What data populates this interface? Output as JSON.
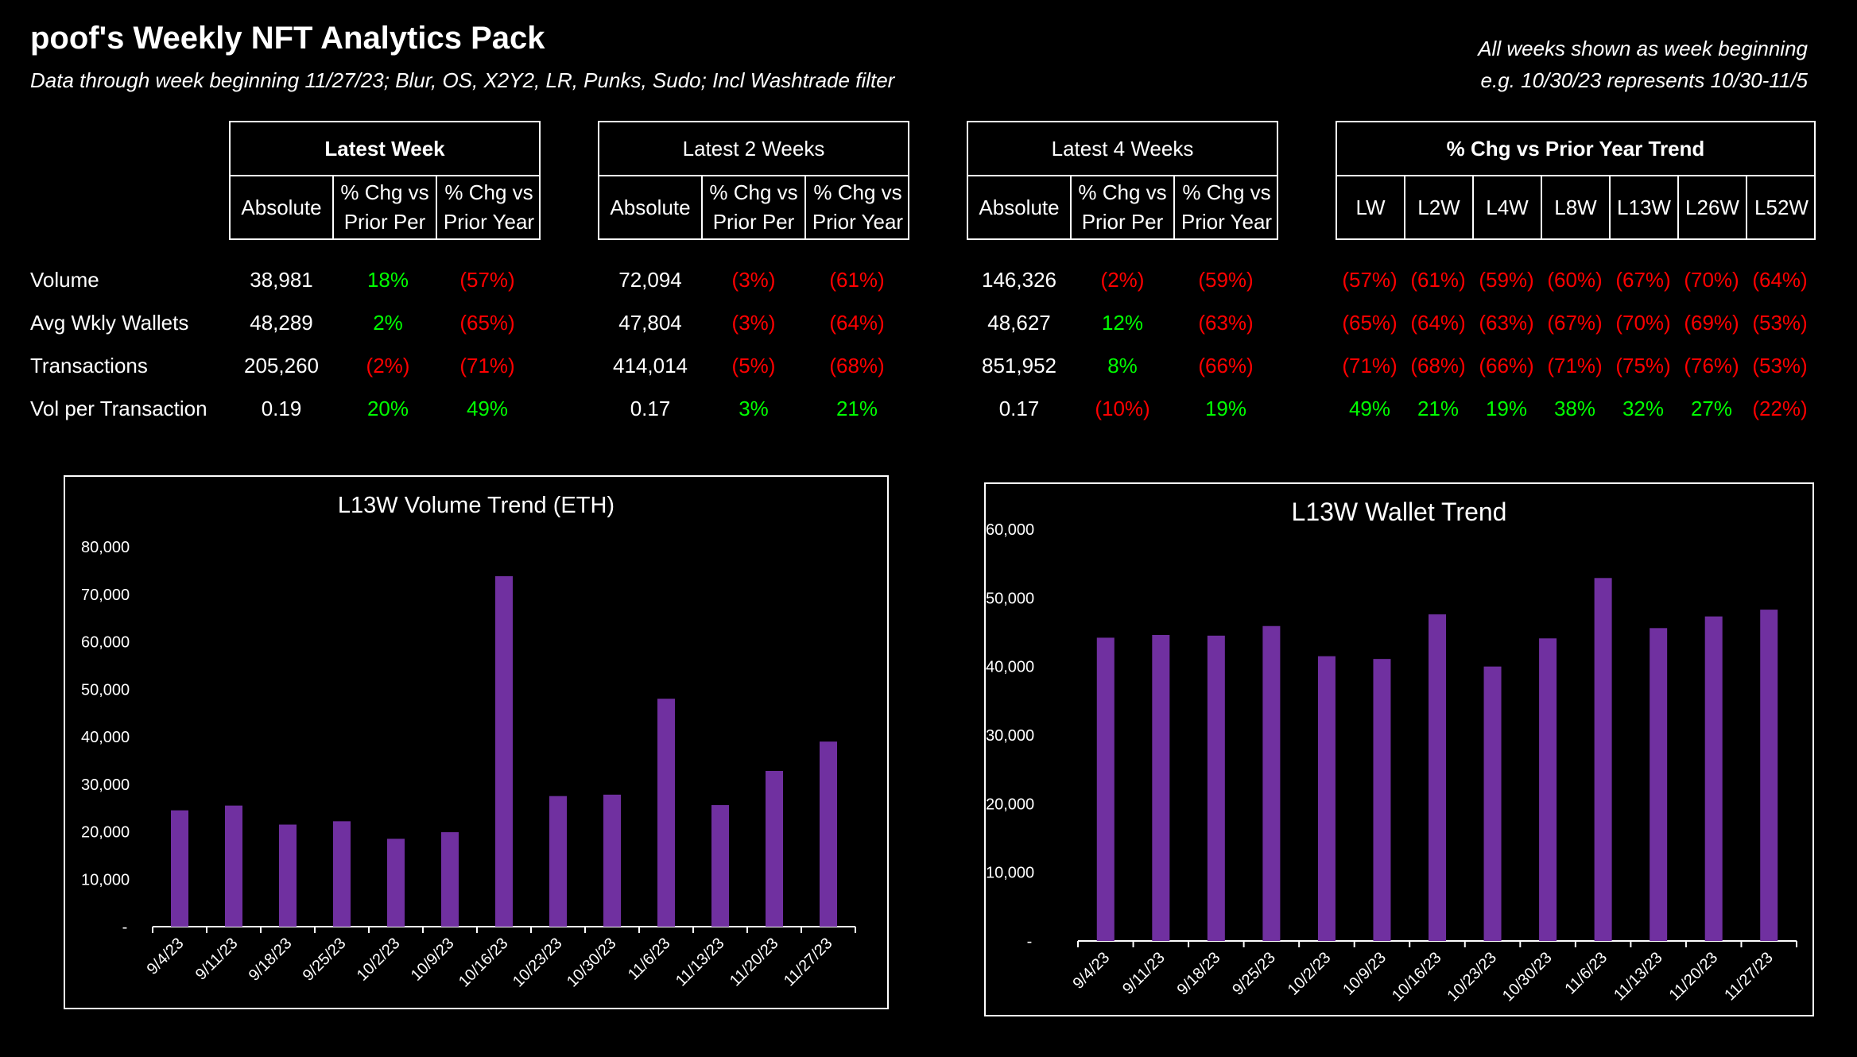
{
  "header": {
    "title": "poof's Weekly NFT Analytics Pack",
    "subtitle": "Data through week beginning 11/27/23; Blur, OS, X2Y2, LR, Punks, Sudo; Incl Washtrade filter",
    "note_line1": "All weeks shown as week beginning",
    "note_line2": "e.g. 10/30/23 represents 10/30-11/5"
  },
  "table": {
    "groups": [
      {
        "title": "Latest Week",
        "cols": [
          "Absolute",
          "% Chg vs\nPrior Per",
          "% Chg vs\nPrior Year"
        ]
      },
      {
        "title": "Latest 2 Weeks",
        "cols": [
          "Absolute",
          "% Chg vs\nPrior Per",
          "% Chg vs\nPrior Year"
        ]
      },
      {
        "title": "Latest 4 Weeks",
        "cols": [
          "Absolute",
          "% Chg vs\nPrior Per",
          "% Chg vs\nPrior Year"
        ]
      },
      {
        "title": "% Chg vs Prior Year Trend",
        "cols": [
          "LW",
          "L2W",
          "L4W",
          "L8W",
          "L13W",
          "L26W",
          "L52W"
        ]
      }
    ],
    "rows": [
      {
        "label": "Volume",
        "values": [
          "38,981",
          "18%",
          "(57%)",
          "72,094",
          "(3%)",
          "(61%)",
          "146,326",
          "(2%)",
          "(59%)",
          "(57%)",
          "(61%)",
          "(59%)",
          "(60%)",
          "(67%)",
          "(70%)",
          "(64%)"
        ]
      },
      {
        "label": "Avg Wkly Wallets",
        "values": [
          "48,289",
          "2%",
          "(65%)",
          "47,804",
          "(3%)",
          "(64%)",
          "48,627",
          "12%",
          "(63%)",
          "(65%)",
          "(64%)",
          "(63%)",
          "(67%)",
          "(70%)",
          "(69%)",
          "(53%)"
        ]
      },
      {
        "label": "Transactions",
        "values": [
          "205,260",
          "(2%)",
          "(71%)",
          "414,014",
          "(5%)",
          "(68%)",
          "851,952",
          "8%",
          "(66%)",
          "(71%)",
          "(68%)",
          "(66%)",
          "(71%)",
          "(75%)",
          "(76%)",
          "(53%)"
        ]
      },
      {
        "label": "Vol per Transaction",
        "values": [
          "0.19",
          "20%",
          "49%",
          "0.17",
          "3%",
          "21%",
          "0.17",
          "(10%)",
          "19%",
          "49%",
          "21%",
          "19%",
          "38%",
          "32%",
          "27%",
          "(22%)"
        ]
      }
    ]
  },
  "colors": {
    "positive": "#00ff00",
    "negative": "#ff0000",
    "bar": "#7030a0"
  },
  "chart_data": [
    {
      "type": "bar",
      "title": "L13W Volume Trend (ETH)",
      "categories": [
        "9/4/23",
        "9/11/23",
        "9/18/23",
        "9/25/23",
        "10/2/23",
        "10/9/23",
        "10/16/23",
        "10/23/23",
        "10/30/23",
        "11/6/23",
        "11/13/23",
        "11/20/23",
        "11/27/23"
      ],
      "values": [
        24500,
        25500,
        21500,
        22200,
        18500,
        19900,
        73800,
        27500,
        27800,
        48000,
        25600,
        32800,
        38981
      ],
      "ylim": [
        0,
        80000
      ],
      "yticks": [
        "-",
        "10,000",
        "20,000",
        "30,000",
        "40,000",
        "50,000",
        "60,000",
        "70,000",
        "80,000"
      ],
      "xlabel": "",
      "ylabel": ""
    },
    {
      "type": "bar",
      "title": "L13W Wallet Trend",
      "categories": [
        "9/4/23",
        "9/11/23",
        "9/18/23",
        "9/25/23",
        "10/2/23",
        "10/9/23",
        "10/16/23",
        "10/23/23",
        "10/30/23",
        "11/6/23",
        "11/13/23",
        "11/20/23",
        "11/27/23"
      ],
      "values": [
        44200,
        44600,
        44500,
        45900,
        41500,
        41100,
        47600,
        40000,
        44100,
        52900,
        45600,
        47300,
        48289
      ],
      "ylim": [
        0,
        60000
      ],
      "yticks": [
        "-",
        "10,000",
        "20,000",
        "30,000",
        "40,000",
        "50,000",
        "60,000"
      ],
      "xlabel": "",
      "ylabel": ""
    }
  ]
}
